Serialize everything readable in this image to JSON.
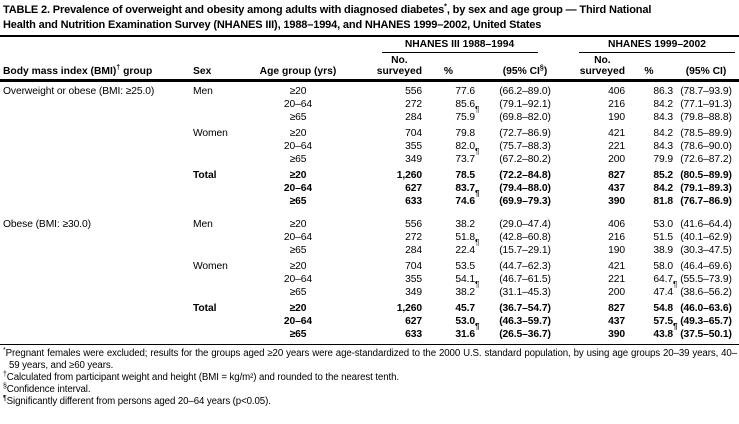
{
  "colors": {
    "text": "#000000",
    "background": "#ffffff",
    "rule": "#000000"
  },
  "title": {
    "line1_pre": "TABLE 2. Prevalence of overweight and obesity among adults with diagnosed diabetes",
    "marker": "*",
    "line1_post": ", by sex and age group — Third National",
    "line2": "Health and Nutrition Examination Survey (NHANES III), 1988–1994, and NHANES 1999–2002, United States"
  },
  "groups": [
    {
      "line1": "NHANES III",
      "line2": "1988–1994"
    },
    {
      "line1": "NHANES",
      "line2": "1999–2002"
    }
  ],
  "columns": {
    "bmi_pre": "Body mass index (BMI)",
    "bmi_marker": "†",
    "bmi_post": " group",
    "sex": "Sex",
    "age": "Age group (yrs)",
    "no_line1": "No.",
    "no_line2": "surveyed",
    "pct": "%",
    "ci1_pre": "(95% CI",
    "ci1_marker": "§",
    "ci1_post": ")",
    "ci2": "(95% CI)"
  },
  "table": {
    "sections": [
      {
        "bmi_group": "Overweight or obese (BMI: ≥25.0)",
        "blocks": [
          {
            "sex": "Men",
            "total": false,
            "rows": [
              {
                "age": "≥20",
                "n1": "556",
                "pct1": "77.6",
                "m1": "",
                "ci1": "(66.2–89.0)",
                "n2": "406",
                "pct2": "86.3",
                "m2": "",
                "ci2": "(78.7–93.9)"
              },
              {
                "age": "20–64",
                "n1": "272",
                "pct1": "85.6",
                "m1": "",
                "ci1": "(79.1–92.1)",
                "n2": "216",
                "pct2": "84.2",
                "m2": "",
                "ci2": "(77.1–91.3)"
              },
              {
                "age": "≥65",
                "n1": "284",
                "pct1": "75.9",
                "m1": "¶",
                "ci1": "(69.8–82.0)",
                "n2": "190",
                "pct2": "84.3",
                "m2": "",
                "ci2": "(79.8–88.8)"
              }
            ]
          },
          {
            "sex": "Women",
            "total": false,
            "rows": [
              {
                "age": "≥20",
                "n1": "704",
                "pct1": "79.8",
                "m1": "",
                "ci1": "(72.7–86.9)",
                "n2": "421",
                "pct2": "84.2",
                "m2": "",
                "ci2": "(78.5–89.9)"
              },
              {
                "age": "20–64",
                "n1": "355",
                "pct1": "82.0",
                "m1": "",
                "ci1": "(75.7–88.3)",
                "n2": "221",
                "pct2": "84.3",
                "m2": "",
                "ci2": "(78.6–90.0)"
              },
              {
                "age": "≥65",
                "n1": "349",
                "pct1": "73.7",
                "m1": "¶",
                "ci1": "(67.2–80.2)",
                "n2": "200",
                "pct2": "79.9",
                "m2": "",
                "ci2": "(72.6–87.2)"
              }
            ]
          },
          {
            "sex": "Total",
            "total": true,
            "rows": [
              {
                "age": "≥20",
                "n1": "1,260",
                "pct1": "78.5",
                "m1": "",
                "ci1": "(72.2–84.8)",
                "n2": "827",
                "pct2": "85.2",
                "m2": "",
                "ci2": "(80.5–89.9)"
              },
              {
                "age": "20–64",
                "n1": "627",
                "pct1": "83.7",
                "m1": "",
                "ci1": "(79.4–88.0)",
                "n2": "437",
                "pct2": "84.2",
                "m2": "",
                "ci2": "(79.1–89.3)"
              },
              {
                "age": "≥65",
                "n1": "633",
                "pct1": "74.6",
                "m1": "¶",
                "ci1": "(69.9–79.3)",
                "n2": "390",
                "pct2": "81.8",
                "m2": "",
                "ci2": "(76.7–86.9)"
              }
            ]
          }
        ]
      },
      {
        "bmi_group": "Obese (BMI: ≥30.0)",
        "blocks": [
          {
            "sex": "Men",
            "total": false,
            "rows": [
              {
                "age": "≥20",
                "n1": "556",
                "pct1": "38.2",
                "m1": "",
                "ci1": "(29.0–47.4)",
                "n2": "406",
                "pct2": "53.0",
                "m2": "",
                "ci2": "(41.6–64.4)"
              },
              {
                "age": "20–64",
                "n1": "272",
                "pct1": "51.8",
                "m1": "",
                "ci1": "(42.8–60.8)",
                "n2": "216",
                "pct2": "51.5",
                "m2": "",
                "ci2": "(40.1–62.9)"
              },
              {
                "age": "≥65",
                "n1": "284",
                "pct1": "22.4",
                "m1": "¶",
                "ci1": "(15.7–29.1)",
                "n2": "190",
                "pct2": "38.9",
                "m2": "",
                "ci2": "(30.3–47.5)"
              }
            ]
          },
          {
            "sex": "Women",
            "total": false,
            "rows": [
              {
                "age": "≥20",
                "n1": "704",
                "pct1": "53.5",
                "m1": "",
                "ci1": "(44.7–62.3)",
                "n2": "421",
                "pct2": "58.0",
                "m2": "",
                "ci2": "(46.4–69.6)"
              },
              {
                "age": "20–64",
                "n1": "355",
                "pct1": "54.1",
                "m1": "",
                "ci1": "(46.7–61.5)",
                "n2": "221",
                "pct2": "64.7",
                "m2": "",
                "ci2": "(55.5–73.9)"
              },
              {
                "age": "≥65",
                "n1": "349",
                "pct1": "38.2",
                "m1": "¶",
                "ci1": "(31.1–45.3)",
                "n2": "200",
                "pct2": "47.4",
                "m2": "¶",
                "ci2": "(38.6–56.2)"
              }
            ]
          },
          {
            "sex": "Total",
            "total": true,
            "rows": [
              {
                "age": "≥20",
                "n1": "1,260",
                "pct1": "45.7",
                "m1": "",
                "ci1": "(36.7–54.7)",
                "n2": "827",
                "pct2": "54.8",
                "m2": "",
                "ci2": "(46.0–63.6)"
              },
              {
                "age": "20–64",
                "n1": "627",
                "pct1": "53.0",
                "m1": "",
                "ci1": "(46.3–59.7)",
                "n2": "437",
                "pct2": "57.5",
                "m2": "",
                "ci2": "(49.3–65.7)"
              },
              {
                "age": "≥65",
                "n1": "633",
                "pct1": "31.6",
                "m1": "¶",
                "ci1": "(26.5–36.7)",
                "n2": "390",
                "pct2": "43.8",
                "m2": "¶",
                "ci2": "(37.5–50.1)"
              }
            ]
          }
        ]
      }
    ]
  },
  "footnotes": [
    {
      "marker": "*",
      "text": "Pregnant females were excluded; results for the groups aged ≥20 years were age-standardized to the 2000 U.S. standard population, by using age groups 20–39 years, 40–59 years, and ≥60 years."
    },
    {
      "marker": "†",
      "text": "Calculated from participant weight and height (BMI = kg/m²) and rounded to the nearest tenth."
    },
    {
      "marker": "§",
      "text": "Confidence interval."
    },
    {
      "marker": "¶",
      "text": "Significantly different from persons aged 20–64 years (p<0.05)."
    }
  ]
}
